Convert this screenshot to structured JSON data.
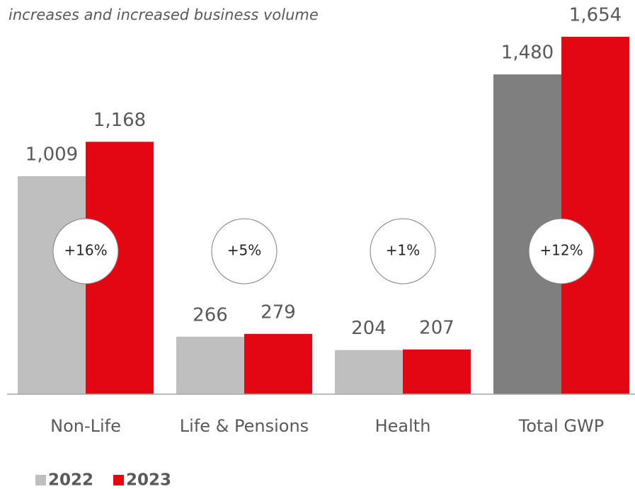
{
  "chart_data": {
    "type": "bar",
    "subtitle": "increases and increased business volume",
    "categories": [
      "Non-Life",
      "Life & Pensions",
      "Health",
      "Total GWP"
    ],
    "series": [
      {
        "name": "2022",
        "color": "#bfbfbf",
        "colors": [
          "#bfbfbf",
          "#bfbfbf",
          "#bfbfbf",
          "#7f7f7f"
        ],
        "values": [
          1009,
          266,
          204,
          1480
        ],
        "value_labels": [
          "1,009",
          "266",
          "204",
          "1,480"
        ]
      },
      {
        "name": "2023",
        "color": "#e30613",
        "colors": [
          "#e30613",
          "#e30613",
          "#e30613",
          "#e30613"
        ],
        "values": [
          1168,
          279,
          207,
          1654
        ],
        "value_labels": [
          "1,168",
          "279",
          "207",
          "1,654"
        ]
      }
    ],
    "growth_labels": [
      "+16%",
      "+5%",
      "+1%",
      "+12%"
    ]
  }
}
